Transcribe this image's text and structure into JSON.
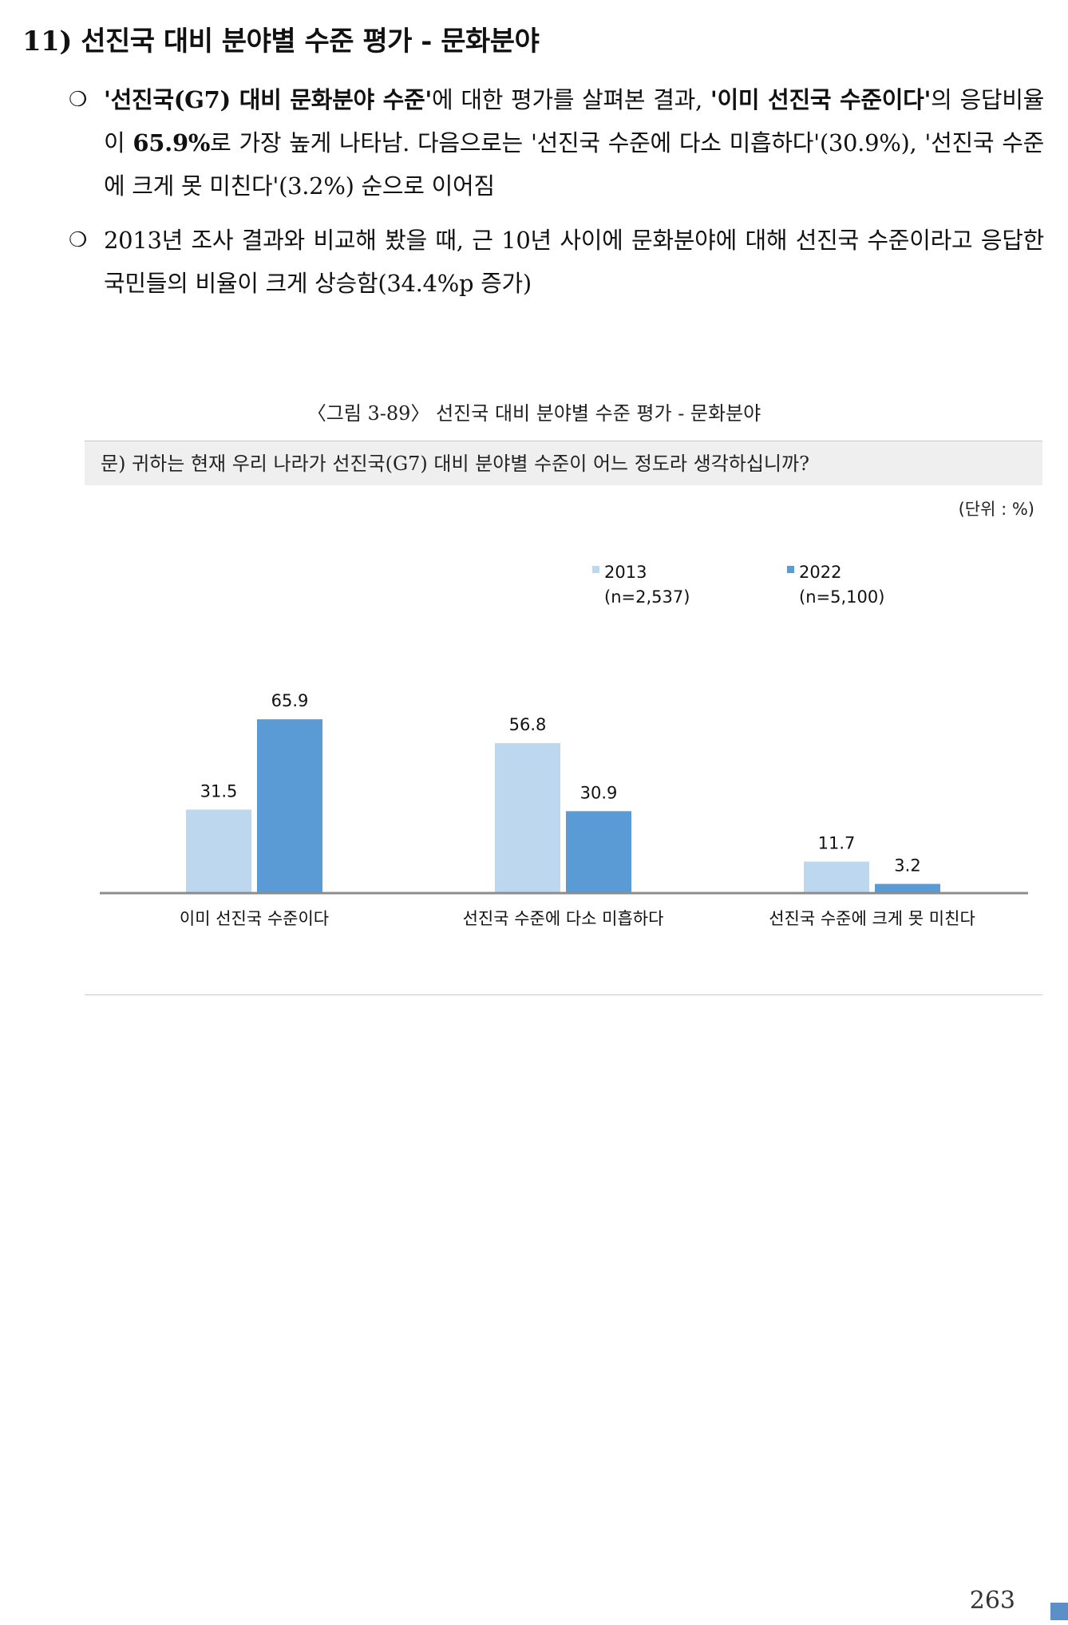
{
  "section": {
    "title": "11) 선진국 대비 분야별 수준 평가 - 문화분야"
  },
  "bullets": {
    "mark": "❍",
    "b1": {
      "p1": "'선진국(G7) 대비 문화분야 수준'",
      "p2": "에 대한 평가를 살펴본 결과, ",
      "p3": "'이미 선진국 수준이다'",
      "p4": "의 응답비율이 ",
      "p5": "65.9%",
      "p6": "로 가장 높게 나타남. 다음으로는 '선진국 수준에 다소 미흡하다'(30.9%), '선진국 수준에 크게 못 미친다'(3.2%) 순으로 이어짐"
    },
    "b2": {
      "text": "2013년 조사 결과와 비교해 봤을 때, 근 10년 사이에 문화분야에 대해 선진국 수준이라고 응답한 국민들의 비율이 크게 상승함(34.4%p 증가)"
    }
  },
  "figure": {
    "caption": "〈그림 3-89〉 선진국 대비 분야별 수준 평가 - 문화분야",
    "question": "문) 귀하는 현재 우리 나라가 선진국(G7) 대비 분야별 수준이 어느 정도라 생각하십니까?",
    "unit": "(단위 : %)"
  },
  "chart_data": {
    "type": "bar",
    "categories": [
      "이미 선진국 수준이다",
      "선진국 수준에 다소 미흡하다",
      "선진국 수준에 크게 못 미친다"
    ],
    "series": [
      {
        "name": "2013",
        "sample": "(n=2,537)",
        "values": [
          31.5,
          56.8,
          11.7
        ],
        "color": "#bdd7ee"
      },
      {
        "name": "2022",
        "sample": "(n=5,100)",
        "values": [
          65.9,
          30.9,
          3.2
        ],
        "color": "#5b9bd5"
      }
    ],
    "ylim": [
      0,
      80
    ],
    "grid": false,
    "legend": "top-right",
    "axis_color": "#8c8c8c"
  },
  "page": {
    "number": "263"
  }
}
